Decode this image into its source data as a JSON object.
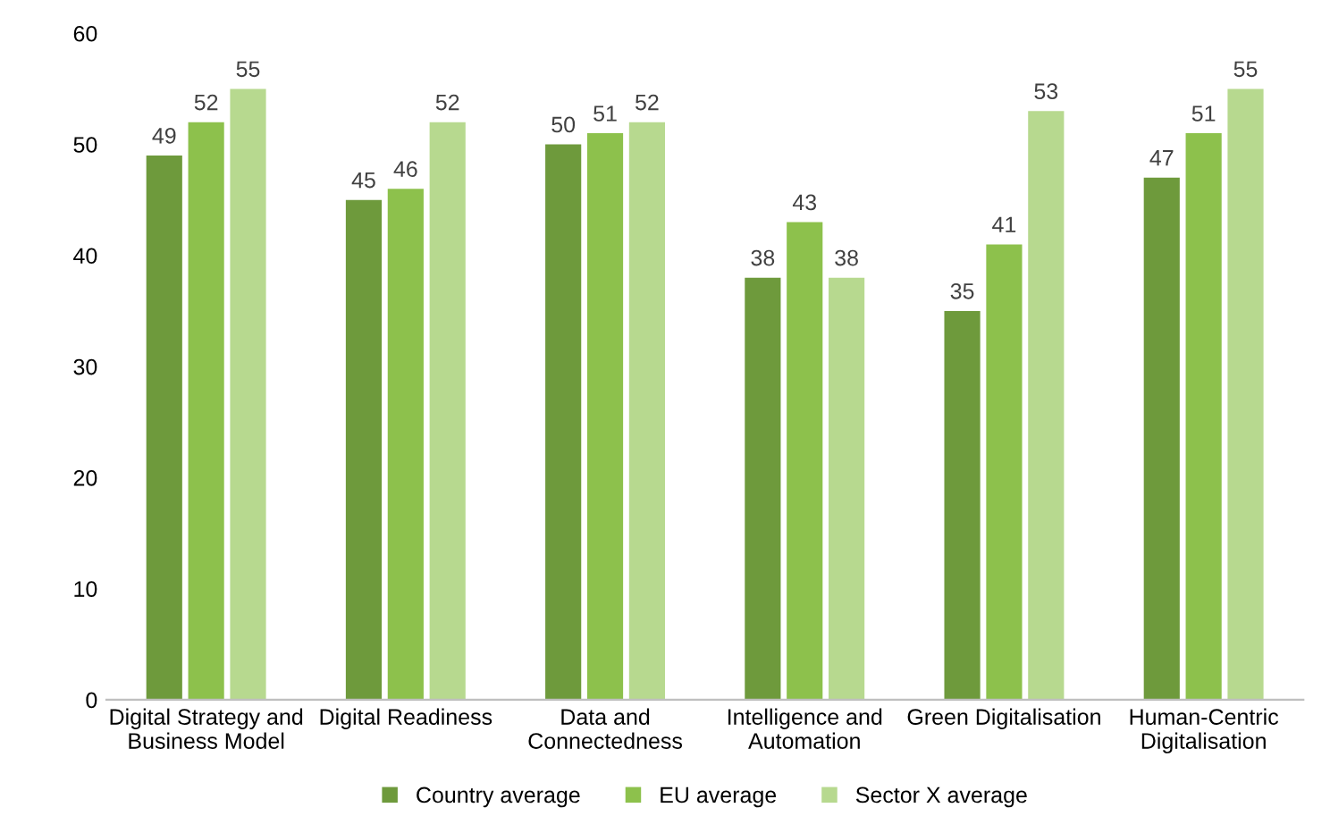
{
  "chart_data": {
    "type": "bar",
    "categories": [
      "Digital Strategy and\nBusiness Model",
      "Digital Readiness",
      "Data and\nConnectedness",
      "Intelligence and\nAutomation",
      "Green Digitalisation",
      "Human-Centric\nDigitalisation"
    ],
    "series": [
      {
        "name": "Country average",
        "color": "#6e9a3c",
        "values": [
          49,
          45,
          50,
          38,
          35,
          47
        ]
      },
      {
        "name": "EU average",
        "color": "#8dc14c",
        "values": [
          52,
          46,
          51,
          43,
          41,
          51
        ]
      },
      {
        "name": "Sector X average",
        "color": "#b7d98f",
        "values": [
          55,
          52,
          52,
          38,
          53,
          55
        ]
      }
    ],
    "ylim": [
      0,
      60
    ],
    "yticks": [
      0,
      10,
      20,
      30,
      40,
      50,
      60
    ],
    "data_labels": true,
    "legend": "bottom",
    "grid": false
  }
}
